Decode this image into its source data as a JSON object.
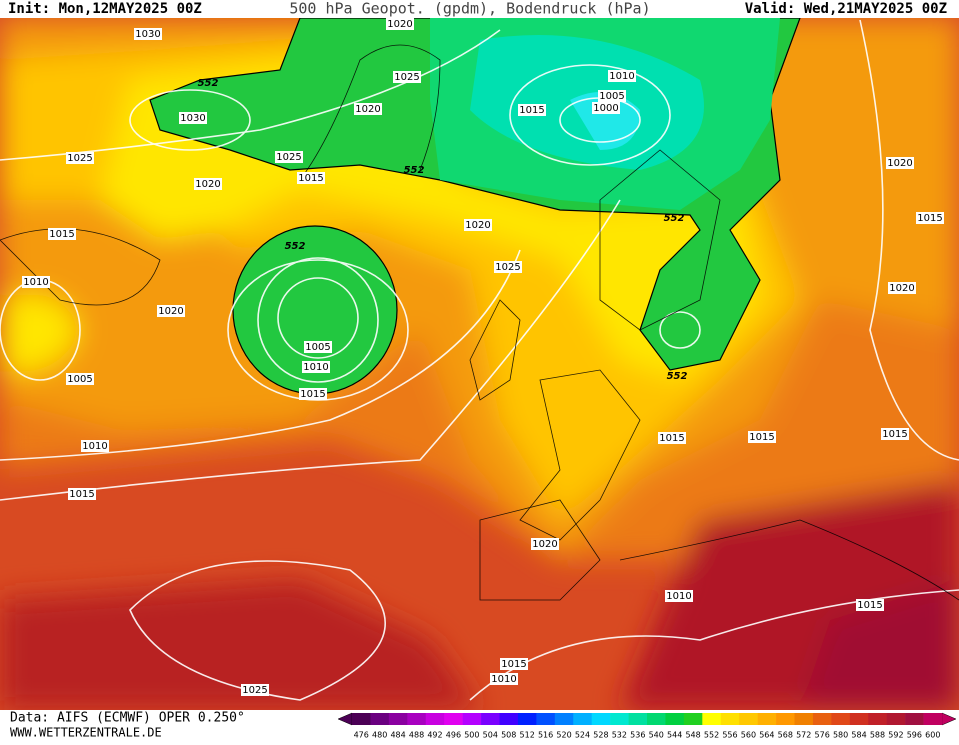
{
  "header": {
    "init": "Init: Mon,12MAY2025 00Z",
    "title": "500 hPa Geopot. (gpdm), Bodendruck (hPa)",
    "valid": "Valid: Wed,21MAY2025 00Z"
  },
  "contour_labels": [
    1020,
    1030,
    552,
    1025,
    1010,
    1005,
    1000,
    1015,
    1020,
    1030,
    1025,
    1025,
    1015,
    1020,
    552,
    1020,
    1015,
    552,
    1020,
    1015,
    552,
    1025,
    1010,
    1020,
    1020,
    1005,
    1010,
    1005,
    552,
    1015,
    1015,
    1015,
    1015,
    1010,
    1015,
    1020,
    1010,
    1015,
    1015,
    1010,
    1025
  ],
  "colorbar": {
    "labels": [
      476,
      480,
      484,
      488,
      492,
      496,
      500,
      504,
      508,
      512,
      516,
      520,
      524,
      528,
      532,
      536,
      540,
      544,
      548,
      552,
      556,
      560,
      564,
      568,
      572,
      576,
      580,
      584,
      588,
      592,
      596,
      600
    ],
    "colors": [
      "#4b0055",
      "#6a0080",
      "#8a00a0",
      "#a800c0",
      "#c800e0",
      "#e000f0",
      "#b400ff",
      "#7a00ff",
      "#4000ff",
      "#0020ff",
      "#0050ff",
      "#0080ff",
      "#00b0ff",
      "#00d8ff",
      "#00e8d0",
      "#00e0a0",
      "#00d870",
      "#00d040",
      "#20d020",
      "#ffff00",
      "#ffe000",
      "#ffc800",
      "#ffb000",
      "#ff9800",
      "#f08000",
      "#e86010",
      "#e04818",
      "#d03020",
      "#c02028",
      "#b01830",
      "#a01040",
      "#c00060"
    ]
  },
  "footer": {
    "source": "Data: AIFS (ECMWF) OPER 0.250°",
    "url": "WWW.WETTERZENTRALE.DE"
  }
}
